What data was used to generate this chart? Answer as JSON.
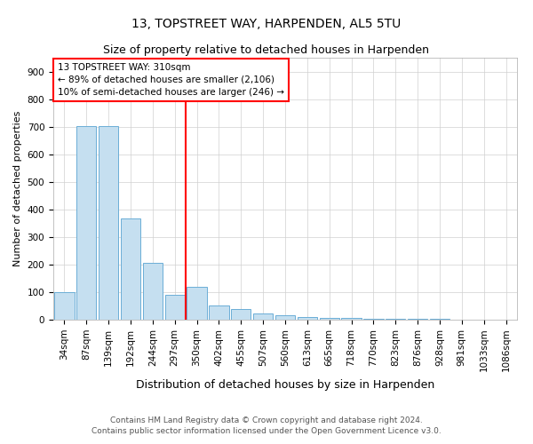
{
  "title": "13, TOPSTREET WAY, HARPENDEN, AL5 5TU",
  "subtitle": "Size of property relative to detached houses in Harpenden",
  "xlabel": "Distribution of detached houses by size in Harpenden",
  "ylabel": "Number of detached properties",
  "categories": [
    "34sqm",
    "87sqm",
    "139sqm",
    "192sqm",
    "244sqm",
    "297sqm",
    "350sqm",
    "402sqm",
    "455sqm",
    "507sqm",
    "560sqm",
    "613sqm",
    "665sqm",
    "718sqm",
    "770sqm",
    "823sqm",
    "876sqm",
    "928sqm",
    "981sqm",
    "1033sqm",
    "1086sqm"
  ],
  "values": [
    100,
    703,
    703,
    368,
    207,
    90,
    120,
    50,
    40,
    22,
    15,
    10,
    8,
    5,
    3,
    3,
    2,
    2,
    1,
    1,
    1
  ],
  "property_index": 5,
  "annotation_line1": "13 TOPSTREET WAY: 310sqm",
  "annotation_line2": "← 89% of detached houses are smaller (2,106)",
  "annotation_line3": "10% of semi-detached houses are larger (246) →",
  "bar_color": "#c5dff0",
  "bar_edge_color": "#6baed6",
  "vline_color": "red",
  "vline_x": 5.5,
  "annotation_box_edgecolor": "red",
  "footer_line1": "Contains HM Land Registry data © Crown copyright and database right 2024.",
  "footer_line2": "Contains public sector information licensed under the Open Government Licence v3.0.",
  "ylim": [
    0,
    950
  ],
  "yticks": [
    0,
    100,
    200,
    300,
    400,
    500,
    600,
    700,
    800,
    900
  ],
  "bg_color": "#ffffff",
  "grid_color": "#d0d0d0",
  "title_fontsize": 10,
  "subtitle_fontsize": 9,
  "xlabel_fontsize": 9,
  "ylabel_fontsize": 8,
  "tick_fontsize": 7.5,
  "footer_fontsize": 6.5
}
